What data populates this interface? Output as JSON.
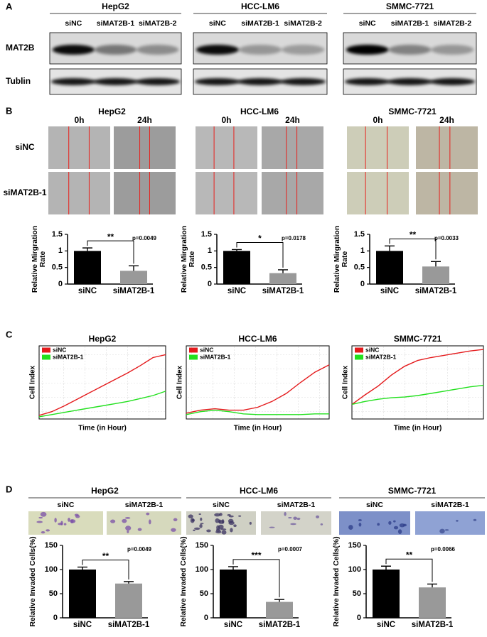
{
  "panel_labels": [
    "A",
    "B",
    "C",
    "D"
  ],
  "blots": {
    "row_labels": [
      "MAT2B",
      "Tublin"
    ],
    "groups": [
      {
        "title": "HepG2",
        "lanes": [
          "siNC",
          "siMAT2B-1",
          "siMAT2B-2"
        ]
      },
      {
        "title": "HCC-LM6",
        "lanes": [
          "siNC",
          "siMAT2B-1",
          "siMAT2B-2"
        ]
      },
      {
        "title": "SMMC-7721",
        "lanes": [
          "siNC",
          "siMAT2B-1",
          "siMAT2B-2"
        ]
      }
    ]
  },
  "wound": {
    "groups": [
      "HepG2",
      "HCC-LM6",
      "SMMC-7721"
    ],
    "times": [
      "0h",
      "24h"
    ],
    "rows": [
      "siNC",
      "siMAT2B-1"
    ]
  },
  "transwell": {
    "groups": [
      "HepG2",
      "HCC-LM6",
      "SMMC-7721"
    ],
    "labels": [
      "siNC",
      "siMAT2B-1"
    ]
  },
  "chart_data": [
    {
      "type": "bar",
      "y_label": [
        "Relative Mirgration",
        "Rate"
      ],
      "categories": [
        "siNC",
        "siMAT2B-1"
      ],
      "values": [
        1,
        0.4
      ],
      "errors": [
        0.09,
        0.15
      ],
      "colors": [
        "#000000",
        "#999999"
      ],
      "ylim": [
        0,
        1.5
      ],
      "yticks": [
        0,
        0.5,
        1,
        1.5
      ],
      "significance": "**",
      "p_value": "p=0.0049"
    },
    {
      "type": "bar",
      "y_label": [
        "Relative Mirgration",
        "Rate"
      ],
      "categories": [
        "siNC",
        "siMAT2B-1"
      ],
      "values": [
        1,
        0.33
      ],
      "errors": [
        0.04,
        0.1
      ],
      "colors": [
        "#000000",
        "#999999"
      ],
      "ylim": [
        0,
        1.5
      ],
      "yticks": [
        0,
        0.5,
        1,
        1.5
      ],
      "significance": "*",
      "p_value": "p=0.0178"
    },
    {
      "type": "bar",
      "y_label": [
        "Relative Mirgration",
        "Rate"
      ],
      "categories": [
        "siNC",
        "siMAT2B-1"
      ],
      "values": [
        1,
        0.53
      ],
      "errors": [
        0.15,
        0.15
      ],
      "colors": [
        "#000000",
        "#999999"
      ],
      "ylim": [
        0,
        1.5
      ],
      "yticks": [
        0,
        0.5,
        1,
        1.5
      ],
      "significance": "**",
      "p_value": "p=0.0033"
    },
    {
      "type": "line",
      "title": "HepG2",
      "x_label": "Time (in Hour)",
      "y_label": "Cell Index",
      "grid": true,
      "legend": "upper left",
      "xlim": [
        0,
        10
      ],
      "ylim": [
        0,
        1
      ],
      "x": [
        0,
        1,
        2,
        3,
        4,
        5,
        6,
        7,
        8,
        9,
        10
      ],
      "series": [
        {
          "name": "siNC",
          "color": "#e41a1c",
          "values": [
            0.05,
            0.1,
            0.18,
            0.27,
            0.36,
            0.45,
            0.54,
            0.63,
            0.73,
            0.84,
            0.88
          ]
        },
        {
          "name": "siMAT2B-1",
          "color": "#22e01e",
          "values": [
            0.03,
            0.06,
            0.09,
            0.12,
            0.15,
            0.18,
            0.21,
            0.24,
            0.28,
            0.32,
            0.38
          ]
        }
      ]
    },
    {
      "type": "line",
      "title": "HCC-LM6",
      "x_label": "Time (in Hour)",
      "y_label": "Cell Index",
      "grid": true,
      "legend": "upper left",
      "xlim": [
        0,
        10
      ],
      "ylim": [
        0,
        1
      ],
      "x": [
        0,
        1,
        2,
        3,
        4,
        5,
        6,
        7,
        8,
        9,
        10
      ],
      "series": [
        {
          "name": "siNC",
          "color": "#e41a1c",
          "values": [
            0.08,
            0.12,
            0.14,
            0.12,
            0.12,
            0.16,
            0.24,
            0.35,
            0.5,
            0.64,
            0.74
          ]
        },
        {
          "name": "siMAT2B-1",
          "color": "#22e01e",
          "values": [
            0.06,
            0.1,
            0.12,
            0.1,
            0.07,
            0.06,
            0.06,
            0.06,
            0.06,
            0.07,
            0.07
          ]
        }
      ]
    },
    {
      "type": "line",
      "title": "SMMC-7721",
      "x_label": "Time (in Hour)",
      "y_label": "Cell Index",
      "grid": true,
      "legend": "upper left",
      "xlim": [
        0,
        10
      ],
      "ylim": [
        0,
        1
      ],
      "x": [
        0,
        1,
        2,
        3,
        4,
        5,
        6,
        7,
        8,
        9,
        10
      ],
      "series": [
        {
          "name": "siNC",
          "color": "#e41a1c",
          "values": [
            0.2,
            0.33,
            0.45,
            0.6,
            0.72,
            0.8,
            0.84,
            0.87,
            0.9,
            0.93,
            0.95
          ]
        },
        {
          "name": "siMAT2B-1",
          "color": "#22e01e",
          "values": [
            0.2,
            0.24,
            0.27,
            0.29,
            0.3,
            0.32,
            0.35,
            0.38,
            0.41,
            0.44,
            0.46
          ]
        }
      ]
    },
    {
      "type": "bar",
      "y_label": [
        "Relative Invaded Cells(%)"
      ],
      "categories": [
        "siNC",
        "siMAT2B-1"
      ],
      "values": [
        100,
        71
      ],
      "errors": [
        5,
        4
      ],
      "colors": [
        "#000000",
        "#999999"
      ],
      "ylim": [
        0,
        150
      ],
      "yticks": [
        0,
        50,
        100,
        150
      ],
      "significance": "**",
      "p_value": "p=0.0049"
    },
    {
      "type": "bar",
      "y_label": [
        "Relative Invaded Cells(%)"
      ],
      "categories": [
        "siNC",
        "siMAT2B-1"
      ],
      "values": [
        100,
        33
      ],
      "errors": [
        6,
        5
      ],
      "colors": [
        "#000000",
        "#999999"
      ],
      "ylim": [
        0,
        150
      ],
      "yticks": [
        0,
        50,
        100,
        150
      ],
      "significance": "***",
      "p_value": "p=0.0007"
    },
    {
      "type": "bar",
      "y_label": [
        "Relative Invaded Cells(%)"
      ],
      "categories": [
        "siNC",
        "siMAT2B-1"
      ],
      "values": [
        100,
        63
      ],
      "errors": [
        7,
        7
      ],
      "colors": [
        "#000000",
        "#999999"
      ],
      "ylim": [
        0,
        150
      ],
      "yticks": [
        0,
        50,
        100,
        150
      ],
      "significance": "**",
      "p_value": "p=0.0066"
    }
  ]
}
